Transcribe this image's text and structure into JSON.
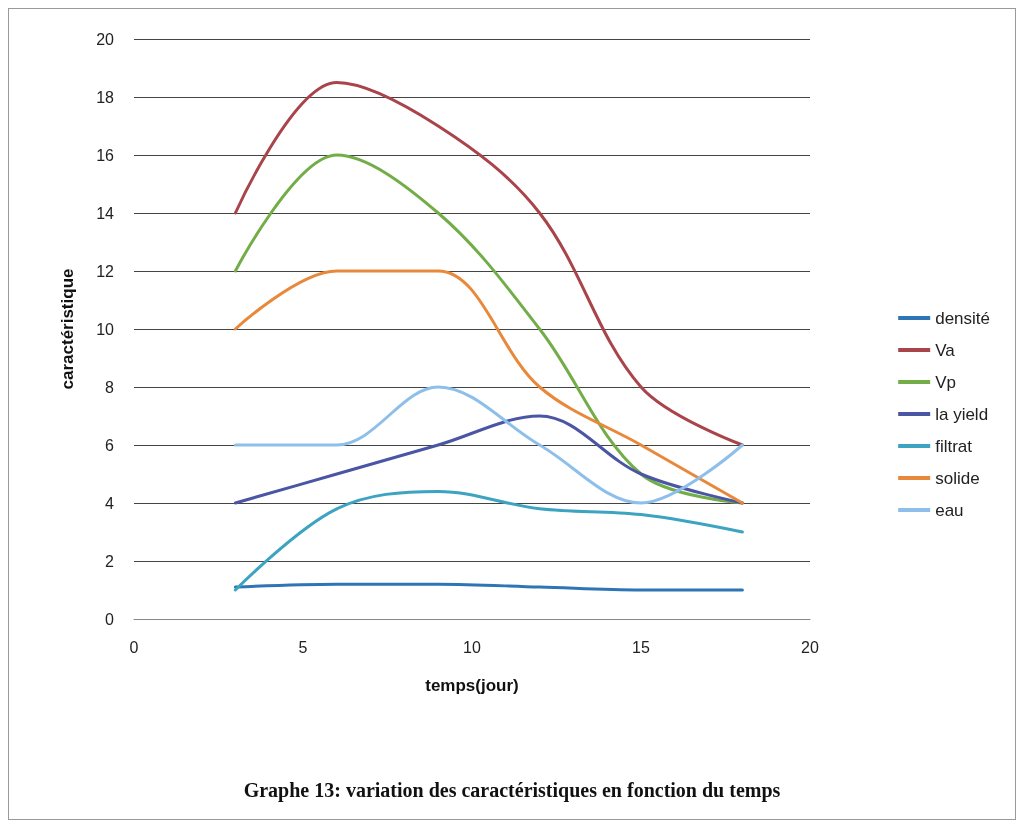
{
  "chart_data": {
    "type": "line",
    "title": "Graphe 13: variation des caractéristiques en fonction du temps",
    "xlabel": "temps(jour)",
    "ylabel": "caractéristique",
    "x": [
      3,
      6,
      9,
      12,
      15,
      18
    ],
    "series": [
      {
        "name": "densité",
        "color": "#2e75b6",
        "values": [
          1.1,
          1.2,
          1.2,
          1.1,
          1.0,
          1.0
        ]
      },
      {
        "name": "Va",
        "color": "#a9444a",
        "values": [
          14,
          18.5,
          17,
          14,
          8,
          6
        ]
      },
      {
        "name": "Vp",
        "color": "#72ad47",
        "values": [
          12,
          16,
          14,
          10,
          5,
          4
        ]
      },
      {
        "name": "la yield",
        "color": "#4a55a4",
        "values": [
          4,
          5,
          6,
          7,
          5,
          4
        ]
      },
      {
        "name": "filtrat",
        "color": "#3ca3c0",
        "values": [
          1,
          3.8,
          4.4,
          3.8,
          3.6,
          3
        ]
      },
      {
        "name": "solide",
        "color": "#e8883a",
        "values": [
          10,
          12,
          12,
          8,
          6,
          4
        ]
      },
      {
        "name": "eau",
        "color": "#8ebfea",
        "values": [
          6,
          6,
          8,
          6,
          4,
          6
        ]
      }
    ],
    "xlim": [
      0,
      20
    ],
    "xticks": [
      0,
      5,
      10,
      15,
      20
    ],
    "ylim": [
      0,
      20
    ],
    "yticks": [
      0,
      2,
      4,
      6,
      8,
      10,
      12,
      14,
      16,
      18,
      20
    ],
    "grid": "y",
    "legend": "right",
    "marker": "none",
    "line_style": "solid"
  }
}
